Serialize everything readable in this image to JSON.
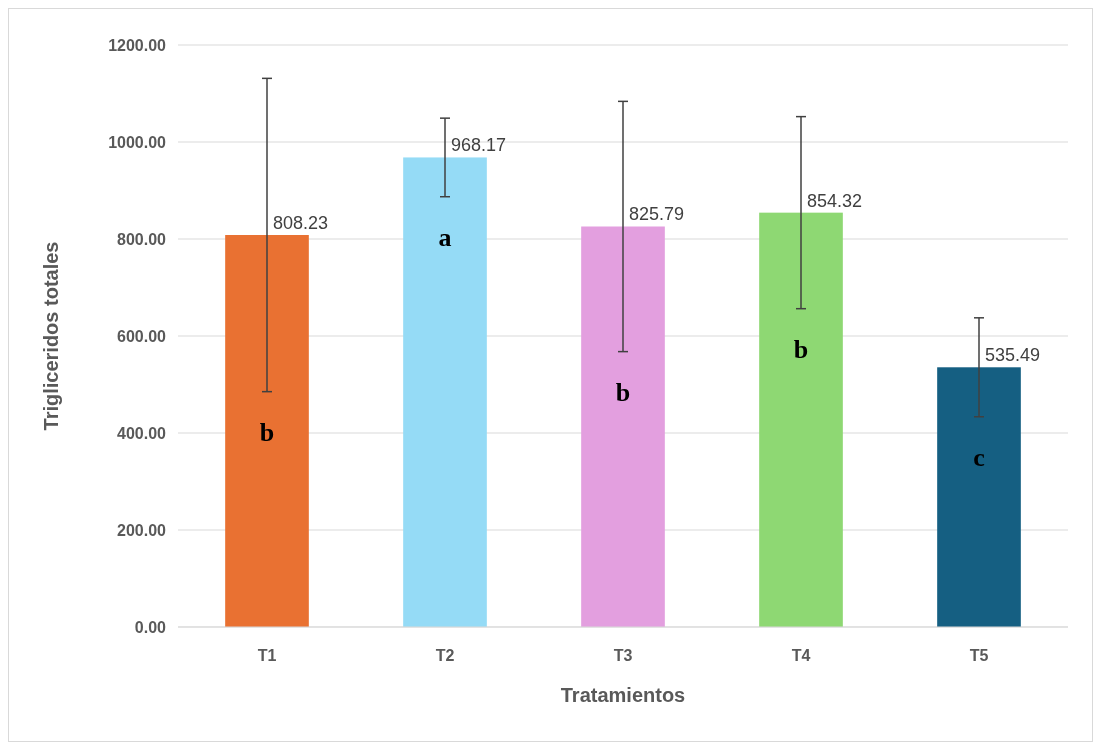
{
  "chart_data": {
    "type": "bar",
    "xlabel": "Tratamientos",
    "ylabel": "Trigliceridos totales",
    "categories": [
      "T1",
      "T2",
      "T3",
      "T4",
      "T5"
    ],
    "values": [
      808.23,
      968.17,
      825.79,
      854.32,
      535.49
    ],
    "colors": [
      "#e97132",
      "#95dbf6",
      "#e39fdf",
      "#8ed873",
      "#155f82"
    ],
    "errors": [
      323,
      81,
      258,
      198,
      102
    ],
    "value_labels": [
      "808.23",
      "968.17",
      "825.79",
      "854.32",
      "535.49"
    ],
    "ylim": [
      0,
      1200
    ],
    "yticks": [
      {
        "value": 0,
        "label": "0.00"
      },
      {
        "value": 200,
        "label": "200.00"
      },
      {
        "value": 400,
        "label": "400.00"
      },
      {
        "value": 600,
        "label": "600.00"
      },
      {
        "value": 800,
        "label": "800.00"
      },
      {
        "value": 1000,
        "label": "1000.00"
      },
      {
        "value": 1200,
        "label": "1200.00"
      }
    ],
    "grid": "y",
    "annotations": [
      "b",
      "a",
      "b",
      "b",
      "c"
    ]
  }
}
